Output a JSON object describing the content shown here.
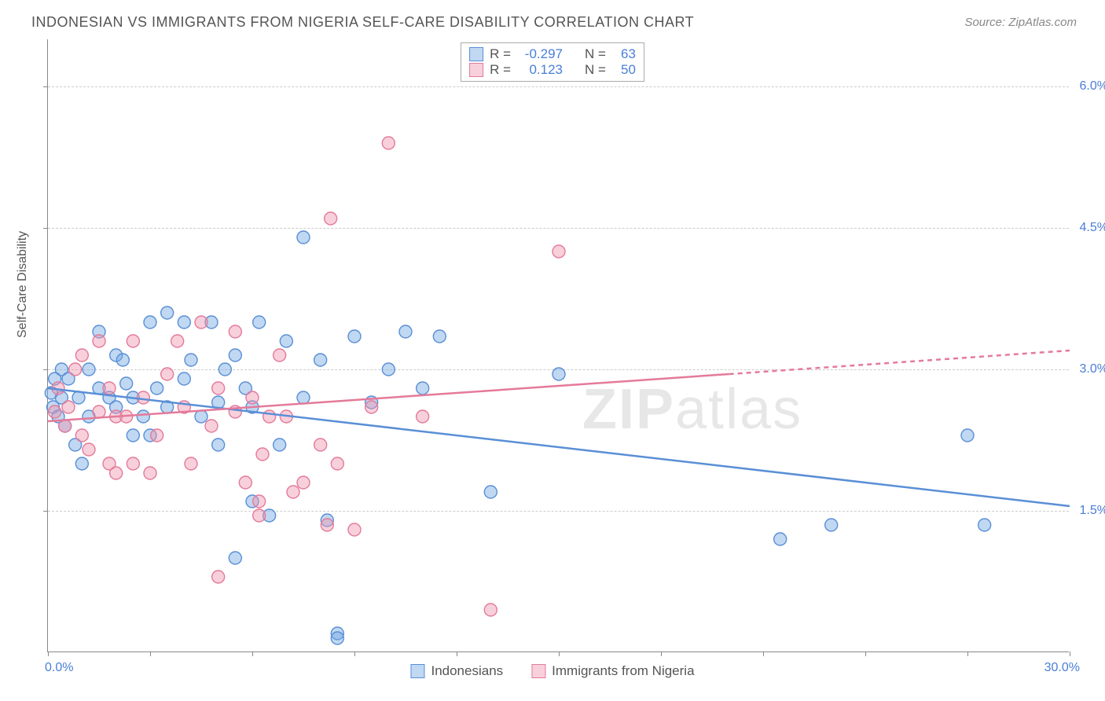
{
  "title": "INDONESIAN VS IMMIGRANTS FROM NIGERIA SELF-CARE DISABILITY CORRELATION CHART",
  "source": "Source: ZipAtlas.com",
  "y_axis_label": "Self-Care Disability",
  "watermark": {
    "zip": "ZIP",
    "atlas": "atlas"
  },
  "chart": {
    "type": "scatter",
    "xlim": [
      0,
      30
    ],
    "ylim": [
      0,
      6.5
    ],
    "x_ticks": [
      0,
      3,
      6,
      9,
      12,
      15,
      18,
      21,
      24,
      27,
      30
    ],
    "y_gridlines": [
      1.5,
      3.0,
      4.5,
      6.0
    ],
    "y_tick_labels": [
      "1.5%",
      "3.0%",
      "4.5%",
      "6.0%"
    ],
    "x_lim_labels": {
      "min": "0.0%",
      "max": "30.0%"
    },
    "background_color": "#ffffff",
    "grid_color": "#cccccc",
    "axis_color": "#888888",
    "marker_radius": 8,
    "marker_stroke_width": 1.4,
    "series": [
      {
        "name": "Indonesians",
        "fill": "rgba(116,168,227,0.45)",
        "stroke": "#5a8fd6",
        "R": "-0.297",
        "N": "63",
        "regression": {
          "y_at_x0": 2.8,
          "y_at_x30": 1.55,
          "solid_until_x": 30
        },
        "points": [
          [
            0.1,
            2.75
          ],
          [
            0.15,
            2.6
          ],
          [
            0.2,
            2.9
          ],
          [
            0.3,
            2.5
          ],
          [
            0.4,
            2.7
          ],
          [
            0.4,
            3.0
          ],
          [
            0.5,
            2.4
          ],
          [
            0.6,
            2.9
          ],
          [
            0.8,
            2.2
          ],
          [
            0.9,
            2.7
          ],
          [
            1.0,
            2.0
          ],
          [
            1.2,
            3.0
          ],
          [
            1.2,
            2.5
          ],
          [
            1.5,
            2.8
          ],
          [
            1.5,
            3.4
          ],
          [
            1.8,
            2.7
          ],
          [
            2.0,
            2.6
          ],
          [
            2.0,
            3.15
          ],
          [
            2.2,
            3.1
          ],
          [
            2.3,
            2.85
          ],
          [
            2.5,
            2.3
          ],
          [
            2.5,
            2.7
          ],
          [
            2.8,
            2.5
          ],
          [
            3.0,
            2.3
          ],
          [
            3.0,
            3.5
          ],
          [
            3.2,
            2.8
          ],
          [
            3.5,
            3.6
          ],
          [
            3.5,
            2.6
          ],
          [
            4.0,
            2.9
          ],
          [
            4.0,
            3.5
          ],
          [
            4.2,
            3.1
          ],
          [
            4.5,
            2.5
          ],
          [
            4.8,
            3.5
          ],
          [
            5.0,
            2.65
          ],
          [
            5.0,
            2.2
          ],
          [
            5.2,
            3.0
          ],
          [
            5.5,
            3.15
          ],
          [
            5.5,
            1.0
          ],
          [
            5.8,
            2.8
          ],
          [
            6.0,
            2.6
          ],
          [
            6.0,
            1.6
          ],
          [
            6.2,
            3.5
          ],
          [
            6.5,
            1.45
          ],
          [
            6.8,
            2.2
          ],
          [
            7.0,
            3.3
          ],
          [
            7.5,
            2.7
          ],
          [
            7.5,
            4.4
          ],
          [
            8.0,
            3.1
          ],
          [
            8.2,
            1.4
          ],
          [
            8.5,
            0.2
          ],
          [
            8.5,
            0.15
          ],
          [
            9.0,
            3.35
          ],
          [
            9.5,
            2.65
          ],
          [
            10.0,
            3.0
          ],
          [
            10.5,
            3.4
          ],
          [
            11.0,
            2.8
          ],
          [
            11.5,
            3.35
          ],
          [
            13.0,
            1.7
          ],
          [
            15.0,
            2.95
          ],
          [
            21.5,
            1.2
          ],
          [
            23.0,
            1.35
          ],
          [
            27.0,
            2.3
          ],
          [
            27.5,
            1.35
          ]
        ]
      },
      {
        "name": "Immigrants from Nigeria",
        "fill": "rgba(240,150,175,0.45)",
        "stroke": "#e47a9a",
        "R": "0.123",
        "N": "50",
        "regression": {
          "y_at_x0": 2.45,
          "y_at_x30": 3.2,
          "solid_until_x": 20
        },
        "points": [
          [
            0.2,
            2.55
          ],
          [
            0.3,
            2.8
          ],
          [
            0.5,
            2.4
          ],
          [
            0.6,
            2.6
          ],
          [
            0.8,
            3.0
          ],
          [
            1.0,
            2.3
          ],
          [
            1.0,
            3.15
          ],
          [
            1.2,
            2.15
          ],
          [
            1.5,
            2.55
          ],
          [
            1.5,
            3.3
          ],
          [
            1.8,
            2.0
          ],
          [
            1.8,
            2.8
          ],
          [
            2.0,
            2.5
          ],
          [
            2.0,
            1.9
          ],
          [
            2.3,
            2.5
          ],
          [
            2.5,
            3.3
          ],
          [
            2.5,
            2.0
          ],
          [
            2.8,
            2.7
          ],
          [
            3.0,
            1.9
          ],
          [
            3.2,
            2.3
          ],
          [
            3.5,
            2.95
          ],
          [
            3.8,
            3.3
          ],
          [
            4.0,
            2.6
          ],
          [
            4.2,
            2.0
          ],
          [
            4.5,
            3.5
          ],
          [
            4.8,
            2.4
          ],
          [
            5.0,
            2.8
          ],
          [
            5.0,
            0.8
          ],
          [
            5.5,
            2.55
          ],
          [
            5.5,
            3.4
          ],
          [
            5.8,
            1.8
          ],
          [
            6.0,
            2.7
          ],
          [
            6.2,
            1.6
          ],
          [
            6.2,
            1.45
          ],
          [
            6.3,
            2.1
          ],
          [
            6.5,
            2.5
          ],
          [
            6.8,
            3.15
          ],
          [
            7.0,
            2.5
          ],
          [
            7.2,
            1.7
          ],
          [
            7.5,
            1.8
          ],
          [
            8.0,
            2.2
          ],
          [
            8.2,
            1.35
          ],
          [
            8.3,
            4.6
          ],
          [
            8.5,
            2.0
          ],
          [
            9.0,
            1.3
          ],
          [
            9.5,
            2.6
          ],
          [
            10.0,
            5.4
          ],
          [
            11.0,
            2.5
          ],
          [
            13.0,
            0.45
          ],
          [
            15.0,
            4.25
          ]
        ]
      }
    ]
  },
  "stats_legend": {
    "R_label": "R =",
    "N_label": "N ="
  },
  "bottom_legend": {
    "series1": "Indonesians",
    "series2": "Immigrants from Nigeria"
  }
}
